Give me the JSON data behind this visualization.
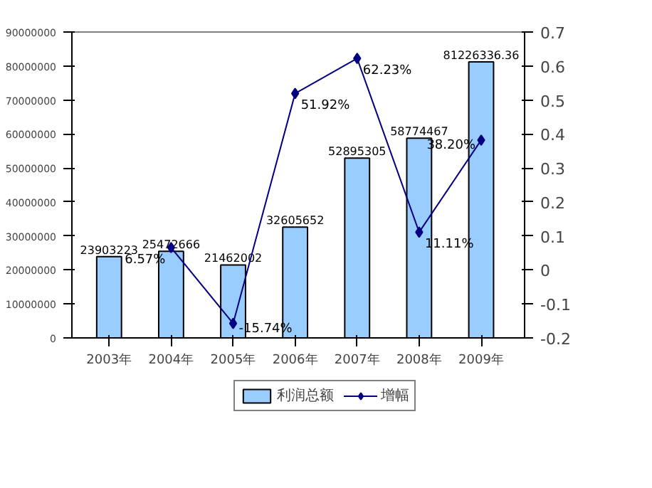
{
  "chart_data": {
    "type": "bar",
    "categories": [
      "2003年",
      "2004年",
      "2005年",
      "2006年",
      "2007年",
      "2008年",
      "2009年"
    ],
    "series": [
      {
        "name": "利润总额",
        "color": "#99ccff",
        "values": [
          23903223,
          25472666,
          21462002,
          32605652,
          52895305,
          58774467,
          81226336.36
        ],
        "value_labels": [
          "23903223",
          "25472666",
          "21462002",
          "32605652",
          "52895305",
          "58774467",
          "81226336.36"
        ]
      },
      {
        "name": "增幅",
        "type": "line",
        "axis": "y2",
        "color": "#000080",
        "values": [
          null,
          0.0657,
          -0.1574,
          0.5192,
          0.6223,
          0.1111,
          0.382
        ],
        "value_labels": [
          null,
          "6.57%",
          "-15.74%",
          "51.92%",
          "62.23%",
          "11.11%",
          "38.20%"
        ]
      }
    ],
    "ylim": [
      0,
      90000000
    ],
    "yticks": [
      0,
      10000000,
      20000000,
      30000000,
      40000000,
      50000000,
      60000000,
      70000000,
      80000000,
      90000000
    ],
    "y2lim": [
      -0.2,
      0.7
    ],
    "y2ticks": [
      -0.2,
      -0.1,
      0,
      0.1,
      0.2,
      0.3,
      0.4,
      0.5,
      0.6,
      0.7
    ],
    "grid": false,
    "legend": "bottom",
    "marker": "diamond",
    "line_style": "solid"
  }
}
